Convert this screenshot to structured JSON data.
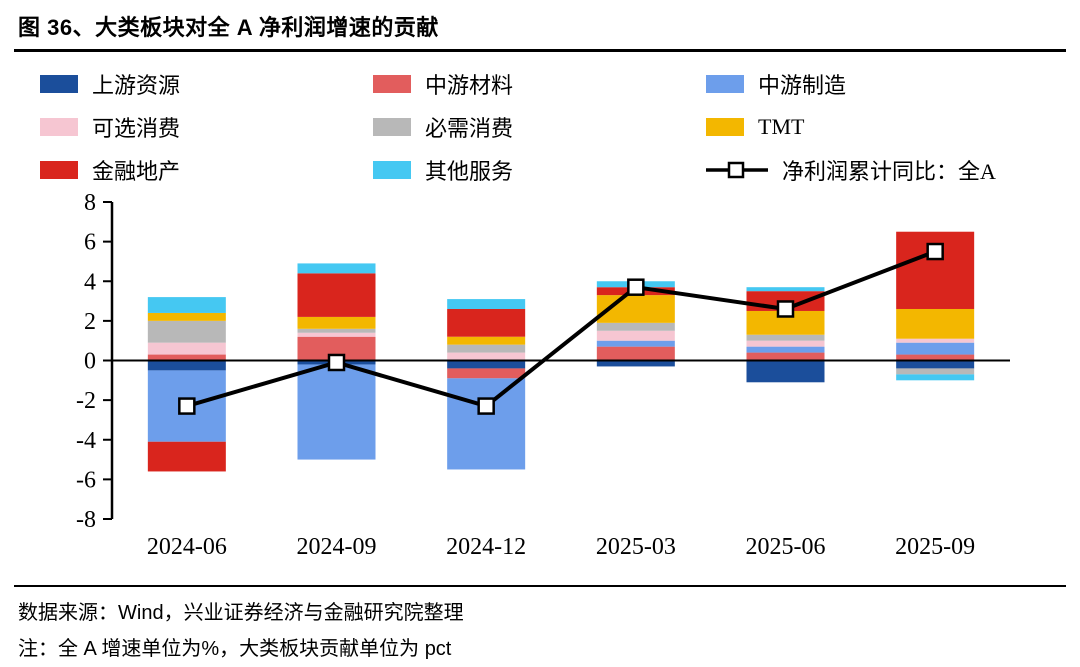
{
  "title": "图 36、大类板块对全 A 净利润增速的贡献",
  "footer": {
    "source": "数据来源：Wind，兴业证券经济与金融研究院整理",
    "note": "注：全 A 增速单位为%，大类板块贡献单位为 pct"
  },
  "chart_data": {
    "type": "bar",
    "stacked": true,
    "title": "图 36、大类板块对全 A 净利润增速的贡献",
    "unit_note": "全 A 增速单位为%，大类板块贡献单位为 pct",
    "categories": [
      "2024-06",
      "2024-09",
      "2024-12",
      "2025-03",
      "2025-06",
      "2025-09"
    ],
    "series": [
      {
        "name": "上游资源",
        "color": "#1b4e9b",
        "values": [
          -0.5,
          -0.2,
          -0.4,
          -0.3,
          -1.1,
          -0.4
        ]
      },
      {
        "name": "中游材料",
        "color": "#e25d5d",
        "values": [
          0.3,
          1.2,
          -0.5,
          0.7,
          0.4,
          0.3
        ]
      },
      {
        "name": "中游制造",
        "color": "#6d9eeb",
        "values": [
          -3.6,
          -4.8,
          -4.6,
          0.3,
          0.3,
          0.6
        ]
      },
      {
        "name": "可选消费",
        "color": "#f6c6d2",
        "values": [
          0.6,
          0.2,
          0.4,
          0.5,
          0.3,
          0.2
        ]
      },
      {
        "name": "必需消费",
        "color": "#b8b8b8",
        "values": [
          1.1,
          0.2,
          0.4,
          0.4,
          0.3,
          -0.3
        ]
      },
      {
        "name": "TMT",
        "color": "#f3b700",
        "values": [
          0.4,
          0.6,
          0.4,
          1.4,
          1.2,
          1.5
        ]
      },
      {
        "name": "金融地产",
        "color": "#d9251d",
        "values": [
          -1.5,
          2.2,
          1.4,
          0.4,
          1.0,
          3.9
        ]
      },
      {
        "name": "其他服务",
        "color": "#45c8f2",
        "values": [
          0.8,
          0.5,
          0.5,
          0.3,
          0.2,
          -0.3
        ]
      }
    ],
    "line_series": {
      "name": "净利润累计同比：全A",
      "color": "#000000",
      "marker": "white-square",
      "values": [
        -2.3,
        -0.1,
        -2.3,
        3.7,
        2.6,
        5.5
      ]
    },
    "ylim": [
      -8,
      8
    ],
    "ytick_step": 2,
    "grid": false,
    "legend_position": "top"
  }
}
